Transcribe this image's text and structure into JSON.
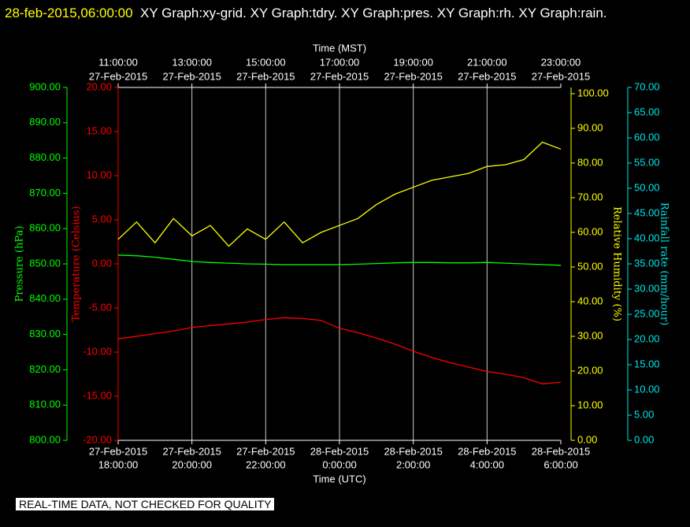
{
  "chart_data": {
    "type": "line",
    "title": "28-feb-2015,06:00:00",
    "subtitle": "XY Graph:xy-grid.  XY Graph:tdry.  XY Graph:pres.  XY Graph:rh.  XY Graph:rain.",
    "footer": "REAL-TIME DATA, NOT CHECKED FOR QUALITY",
    "xlabel": "Time (UTC)",
    "x2label": "Time (MST)",
    "grid": true,
    "xlim": [
      "2015-02-27T18:00:00",
      "2015-02-28T06:00:00"
    ],
    "xticks": [
      {
        "value": "2015-02-27T18:00:00",
        "label": [
          "27-Feb-2015",
          "18:00:00"
        ]
      },
      {
        "value": "2015-02-27T20:00:00",
        "label": [
          "27-Feb-2015",
          "20:00:00"
        ]
      },
      {
        "value": "2015-02-27T22:00:00",
        "label": [
          "27-Feb-2015",
          "22:00:00"
        ]
      },
      {
        "value": "2015-02-28T00:00:00",
        "label": [
          "28-Feb-2015",
          "0:00:00"
        ]
      },
      {
        "value": "2015-02-28T02:00:00",
        "label": [
          "28-Feb-2015",
          "2:00:00"
        ]
      },
      {
        "value": "2015-02-28T04:00:00",
        "label": [
          "28-Feb-2015",
          "4:00:00"
        ]
      },
      {
        "value": "2015-02-28T06:00:00",
        "label": [
          "28-Feb-2015",
          "6:00:00"
        ]
      }
    ],
    "x2ticks": [
      {
        "value": "2015-02-27T18:00:00",
        "label": [
          "11:00:00",
          "27-Feb-2015"
        ]
      },
      {
        "value": "2015-02-27T20:00:00",
        "label": [
          "13:00:00",
          "27-Feb-2015"
        ]
      },
      {
        "value": "2015-02-27T22:00:00",
        "label": [
          "15:00:00",
          "27-Feb-2015"
        ]
      },
      {
        "value": "2015-02-28T00:00:00",
        "label": [
          "17:00:00",
          "27-Feb-2015"
        ]
      },
      {
        "value": "2015-02-28T02:00:00",
        "label": [
          "19:00:00",
          "27-Feb-2015"
        ]
      },
      {
        "value": "2015-02-28T04:00:00",
        "label": [
          "21:00:00",
          "27-Feb-2015"
        ]
      },
      {
        "value": "2015-02-28T06:00:00",
        "label": [
          "23:00:00",
          "27-Feb-2015"
        ]
      }
    ],
    "axes": [
      {
        "label": "Pressure (hPa)",
        "color": "#00ff00",
        "ylim": [
          800,
          900
        ],
        "yticks": [
          {
            "value": 800,
            "label": "800.00"
          },
          {
            "value": 810,
            "label": "810.00"
          },
          {
            "value": 820,
            "label": "820.00"
          },
          {
            "value": 830,
            "label": "830.00"
          },
          {
            "value": 840,
            "label": "840.00"
          },
          {
            "value": 850,
            "label": "850.00"
          },
          {
            "value": 860,
            "label": "860.00"
          },
          {
            "value": 870,
            "label": "870.00"
          },
          {
            "value": 880,
            "label": "880.00"
          },
          {
            "value": 890,
            "label": "890.00"
          },
          {
            "value": 900,
            "label": "900.00"
          }
        ]
      },
      {
        "label": "Temperature (Celsius)",
        "color": "#ff0000",
        "ylim": [
          -20,
          20
        ],
        "yticks": [
          {
            "value": -20,
            "label": "-20.00"
          },
          {
            "value": -15,
            "label": "-15.00"
          },
          {
            "value": -10,
            "label": "-10.00"
          },
          {
            "value": -5,
            "label": "-5.00"
          },
          {
            "value": 0,
            "label": "0.00"
          },
          {
            "value": 5,
            "label": "5.00"
          },
          {
            "value": 10,
            "label": "10.00"
          },
          {
            "value": 15,
            "label": "15.00"
          },
          {
            "value": 20,
            "label": "20.00"
          }
        ]
      },
      {
        "label": "Relative Humidity (%)",
        "color": "#ffff00",
        "ylim": [
          0,
          101.8
        ],
        "yticks": [
          {
            "value": 0,
            "label": "0.00"
          },
          {
            "value": 10,
            "label": "10.00"
          },
          {
            "value": 20,
            "label": "20.00"
          },
          {
            "value": 30,
            "label": "30.00"
          },
          {
            "value": 40,
            "label": "40.00"
          },
          {
            "value": 50,
            "label": "50.00"
          },
          {
            "value": 60,
            "label": "60.00"
          },
          {
            "value": 70,
            "label": "70.00"
          },
          {
            "value": 80,
            "label": "80.00"
          },
          {
            "value": 90,
            "label": "90.00"
          },
          {
            "value": 100,
            "label": "100.00"
          }
        ]
      },
      {
        "label": "Rainfall rate (mm/hour)",
        "color": "#00e5e5",
        "ylim": [
          0,
          70
        ],
        "yticks": [
          {
            "value": 0,
            "label": "0.00"
          },
          {
            "value": 5,
            "label": "5.00"
          },
          {
            "value": 10,
            "label": "10.00"
          },
          {
            "value": 15,
            "label": "15.00"
          },
          {
            "value": 20,
            "label": "20.00"
          },
          {
            "value": 25,
            "label": "25.00"
          },
          {
            "value": 30,
            "label": "30.00"
          },
          {
            "value": 35,
            "label": "35.00"
          },
          {
            "value": 40,
            "label": "40.00"
          },
          {
            "value": 45,
            "label": "45.00"
          },
          {
            "value": 50,
            "label": "50.00"
          },
          {
            "value": 55,
            "label": "55.00"
          },
          {
            "value": 60,
            "label": "60.00"
          },
          {
            "value": 65,
            "label": "65.00"
          },
          {
            "value": 70,
            "label": "70.00"
          }
        ]
      }
    ],
    "x": [
      "2015-02-27T18:00:00",
      "2015-02-27T18:30:00",
      "2015-02-27T19:00:00",
      "2015-02-27T19:30:00",
      "2015-02-27T20:00:00",
      "2015-02-27T20:30:00",
      "2015-02-27T21:00:00",
      "2015-02-27T21:30:00",
      "2015-02-27T22:00:00",
      "2015-02-27T22:30:00",
      "2015-02-27T23:00:00",
      "2015-02-27T23:30:00",
      "2015-02-28T00:00:00",
      "2015-02-28T00:30:00",
      "2015-02-28T01:00:00",
      "2015-02-28T01:30:00",
      "2015-02-28T02:00:00",
      "2015-02-28T02:30:00",
      "2015-02-28T03:00:00",
      "2015-02-28T03:30:00",
      "2015-02-28T04:00:00",
      "2015-02-28T04:30:00",
      "2015-02-28T05:00:00",
      "2015-02-28T05:30:00",
      "2015-02-28T06:00:00"
    ],
    "series": [
      {
        "color": "#00ff00",
        "axis": 0,
        "values": [
          852.5,
          852.3,
          851.9,
          851.3,
          850.7,
          850.4,
          850.2,
          850.0,
          849.9,
          849.8,
          849.8,
          849.8,
          849.8,
          849.9,
          850.1,
          850.3,
          850.4,
          850.4,
          850.3,
          850.3,
          850.4,
          850.2,
          850.0,
          849.8,
          849.6
        ]
      },
      {
        "color": "#ff0000",
        "axis": 1,
        "values": [
          -8.5,
          -8.2,
          -7.9,
          -7.6,
          -7.2,
          -7.0,
          -6.8,
          -6.6,
          -6.3,
          -6.1,
          -6.2,
          -6.4,
          -7.3,
          -7.8,
          -8.4,
          -9.1,
          -9.9,
          -10.6,
          -11.2,
          -11.7,
          -12.2,
          -12.5,
          -12.9,
          -13.6,
          -13.4
        ]
      },
      {
        "color": "#ffff00",
        "axis": 2,
        "values": [
          58,
          63,
          57,
          64,
          59,
          62,
          56,
          61,
          58,
          63,
          57,
          60,
          62,
          64,
          68,
          71,
          73,
          75,
          76,
          77,
          79,
          79.5,
          81,
          86,
          84
        ]
      }
    ]
  }
}
